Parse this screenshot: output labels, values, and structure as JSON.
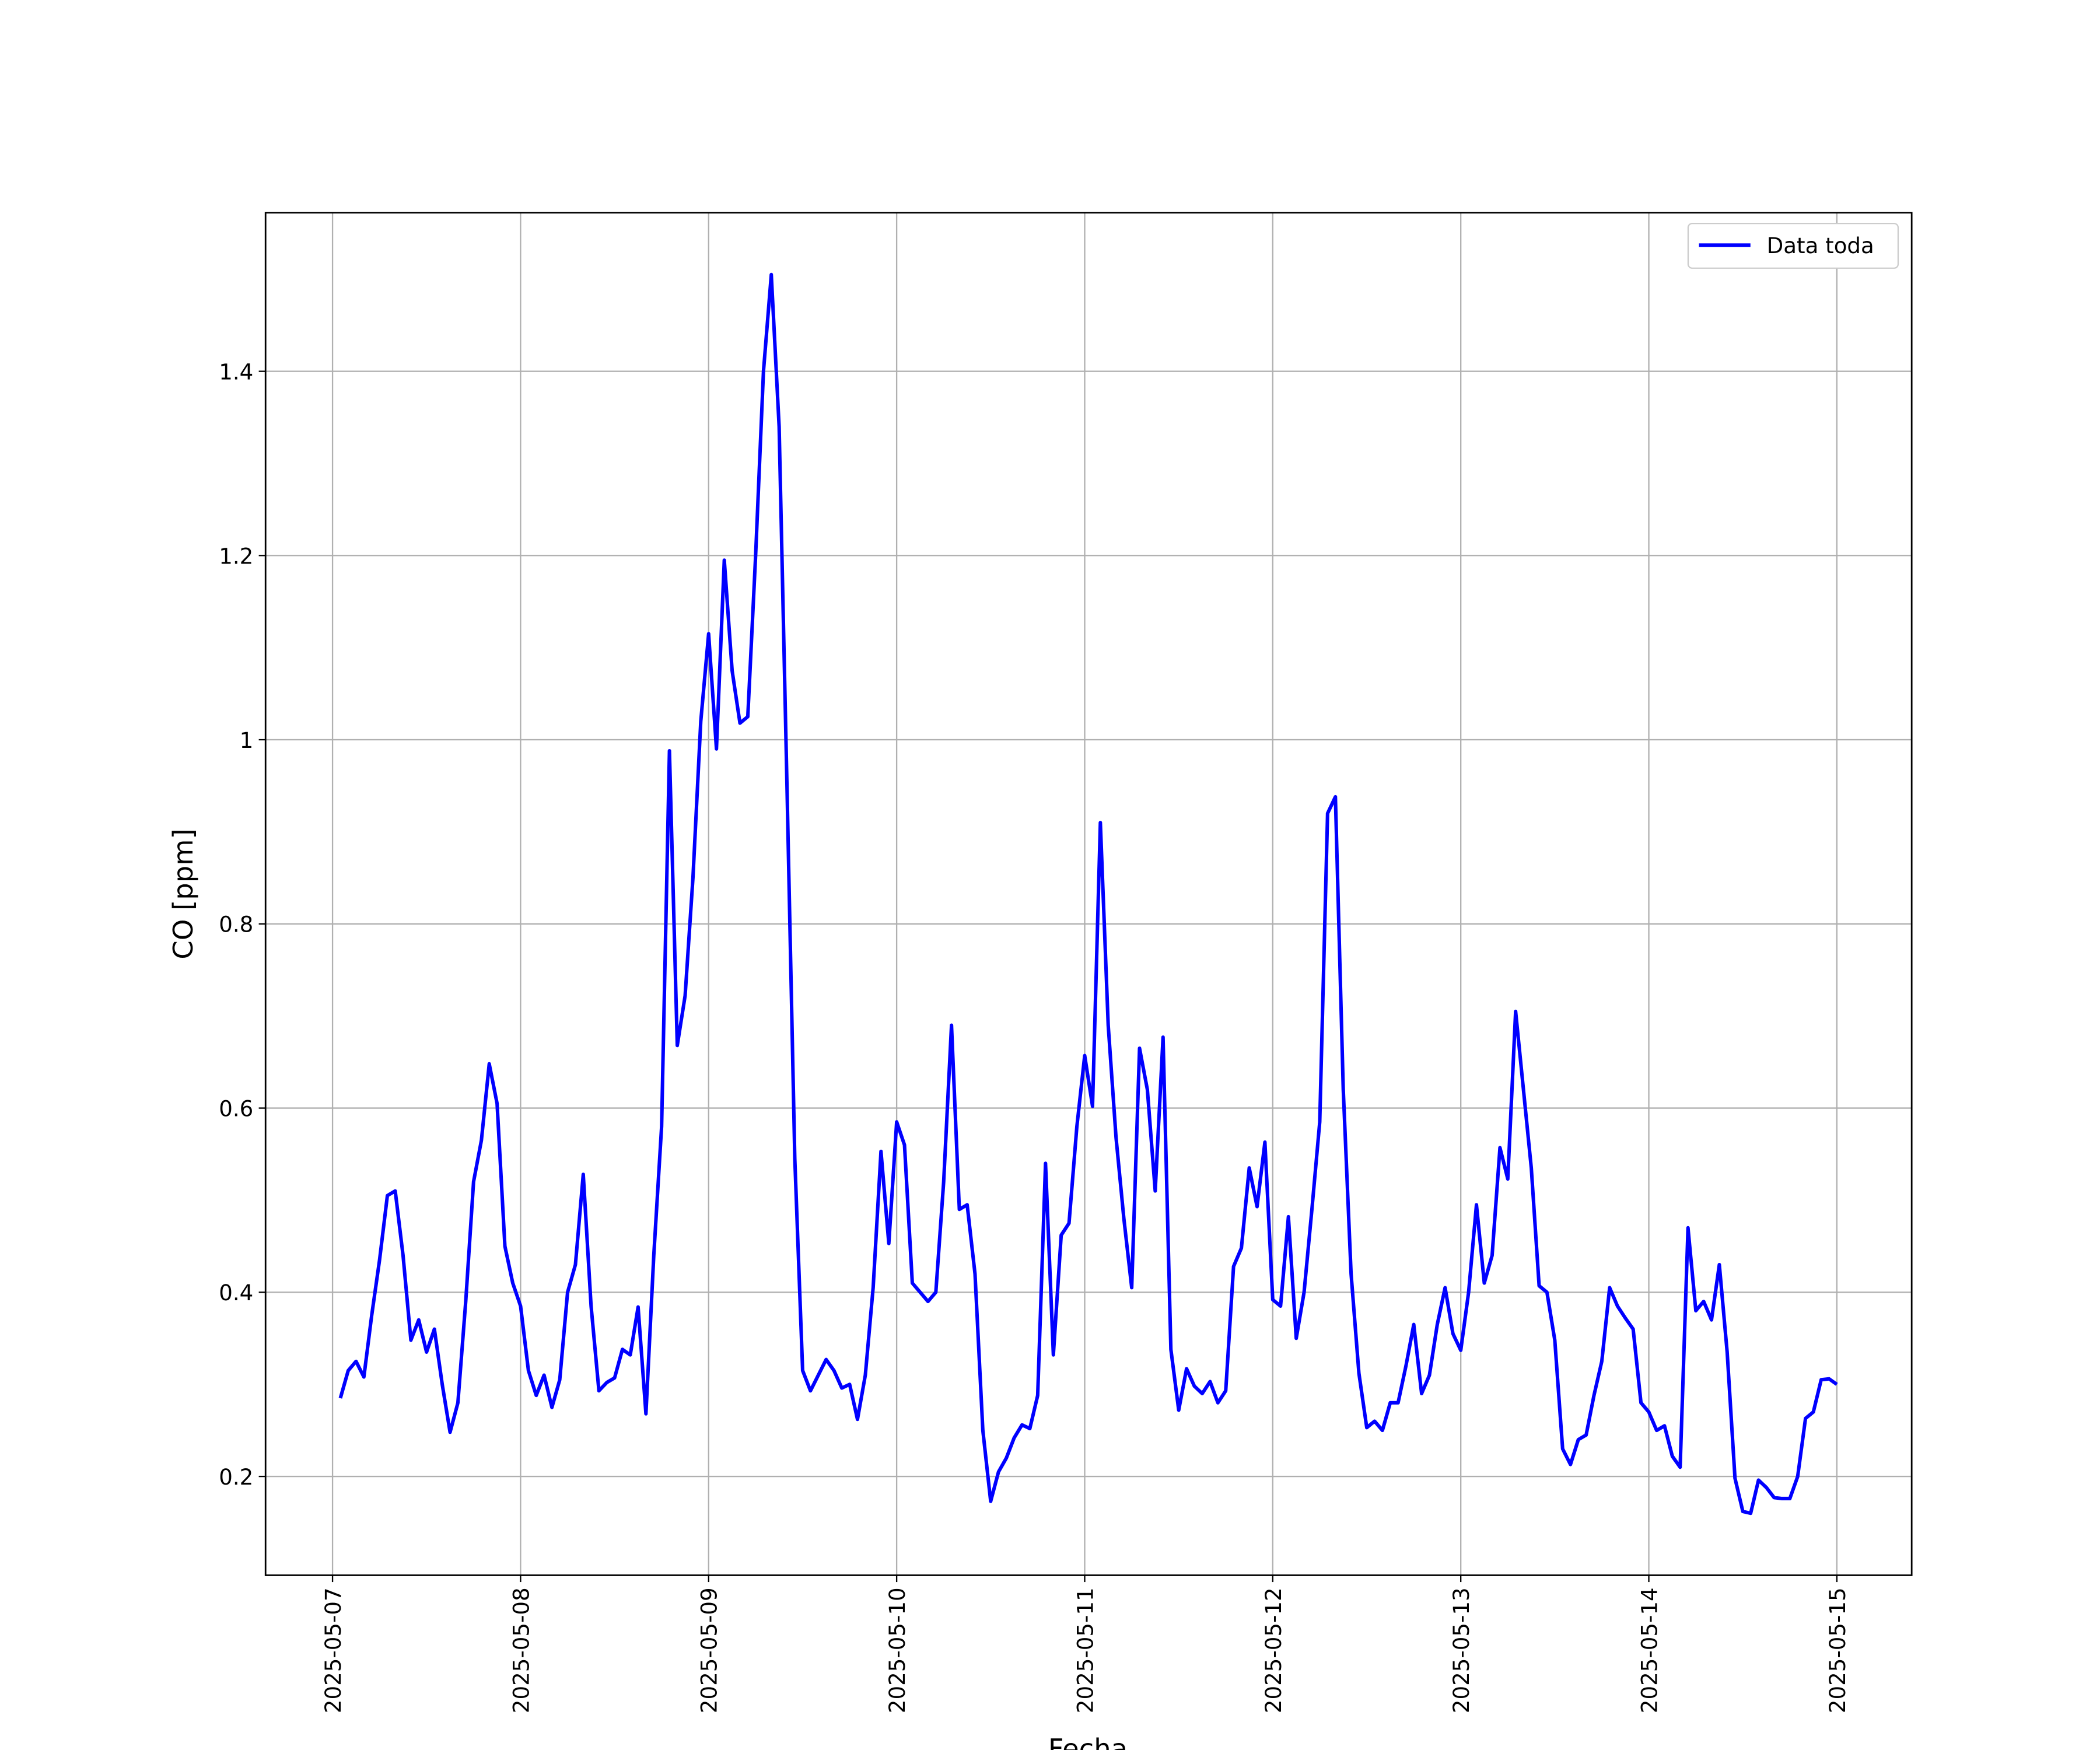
{
  "chart_data": {
    "type": "line",
    "x_label": "Fecha",
    "y_label": "CO [ppm]",
    "x": [
      "2025-05-07T01:00",
      "2025-05-07T02:00",
      "2025-05-07T03:00",
      "2025-05-07T04:00",
      "2025-05-07T05:00",
      "2025-05-07T06:00",
      "2025-05-07T07:00",
      "2025-05-07T08:00",
      "2025-05-07T09:00",
      "2025-05-07T10:00",
      "2025-05-07T11:00",
      "2025-05-07T12:00",
      "2025-05-07T13:00",
      "2025-05-07T14:00",
      "2025-05-07T15:00",
      "2025-05-07T16:00",
      "2025-05-07T17:00",
      "2025-05-07T18:00",
      "2025-05-07T19:00",
      "2025-05-07T20:00",
      "2025-05-07T21:00",
      "2025-05-07T22:00",
      "2025-05-07T23:00",
      "2025-05-08T00:00",
      "2025-05-08T01:00",
      "2025-05-08T02:00",
      "2025-05-08T03:00",
      "2025-05-08T04:00",
      "2025-05-08T05:00",
      "2025-05-08T06:00",
      "2025-05-08T07:00",
      "2025-05-08T08:00",
      "2025-05-08T09:00",
      "2025-05-08T10:00",
      "2025-05-08T11:00",
      "2025-05-08T12:00",
      "2025-05-08T13:00",
      "2025-05-08T14:00",
      "2025-05-08T15:00",
      "2025-05-08T16:00",
      "2025-05-08T17:00",
      "2025-05-08T18:00",
      "2025-05-08T19:00",
      "2025-05-08T20:00",
      "2025-05-08T21:00",
      "2025-05-08T22:00",
      "2025-05-08T23:00",
      "2025-05-09T00:00",
      "2025-05-09T01:00",
      "2025-05-09T02:00",
      "2025-05-09T03:00",
      "2025-05-09T04:00",
      "2025-05-09T05:00",
      "2025-05-09T06:00",
      "2025-05-09T07:00",
      "2025-05-09T08:00",
      "2025-05-09T09:00",
      "2025-05-09T10:00",
      "2025-05-09T11:00",
      "2025-05-09T12:00",
      "2025-05-09T13:00",
      "2025-05-09T14:00",
      "2025-05-09T15:00",
      "2025-05-09T16:00",
      "2025-05-09T17:00",
      "2025-05-09T18:00",
      "2025-05-09T19:00",
      "2025-05-09T20:00",
      "2025-05-09T21:00",
      "2025-05-09T22:00",
      "2025-05-09T23:00",
      "2025-05-10T00:00",
      "2025-05-10T01:00",
      "2025-05-10T02:00",
      "2025-05-10T03:00",
      "2025-05-10T04:00",
      "2025-05-10T05:00",
      "2025-05-10T06:00",
      "2025-05-10T07:00",
      "2025-05-10T08:00",
      "2025-05-10T09:00",
      "2025-05-10T10:00",
      "2025-05-10T11:00",
      "2025-05-10T12:00",
      "2025-05-10T13:00",
      "2025-05-10T14:00",
      "2025-05-10T15:00",
      "2025-05-10T16:00",
      "2025-05-10T17:00",
      "2025-05-10T18:00",
      "2025-05-10T19:00",
      "2025-05-10T20:00",
      "2025-05-10T21:00",
      "2025-05-10T22:00",
      "2025-05-10T23:00",
      "2025-05-11T00:00",
      "2025-05-11T01:00",
      "2025-05-11T02:00",
      "2025-05-11T03:00",
      "2025-05-11T04:00",
      "2025-05-11T05:00",
      "2025-05-11T06:00",
      "2025-05-11T07:00",
      "2025-05-11T08:00",
      "2025-05-11T09:00",
      "2025-05-11T10:00",
      "2025-05-11T11:00",
      "2025-05-11T12:00",
      "2025-05-11T13:00",
      "2025-05-11T14:00",
      "2025-05-11T15:00",
      "2025-05-11T16:00",
      "2025-05-11T17:00",
      "2025-05-11T18:00",
      "2025-05-11T19:00",
      "2025-05-11T20:00",
      "2025-05-11T21:00",
      "2025-05-11T22:00",
      "2025-05-11T23:00",
      "2025-05-12T00:00",
      "2025-05-12T01:00",
      "2025-05-12T02:00",
      "2025-05-12T03:00",
      "2025-05-12T04:00",
      "2025-05-12T05:00",
      "2025-05-12T06:00",
      "2025-05-12T07:00",
      "2025-05-12T08:00",
      "2025-05-12T09:00",
      "2025-05-12T10:00",
      "2025-05-12T11:00",
      "2025-05-12T12:00",
      "2025-05-12T13:00",
      "2025-05-12T14:00",
      "2025-05-12T15:00",
      "2025-05-12T16:00",
      "2025-05-12T17:00",
      "2025-05-12T18:00",
      "2025-05-12T19:00",
      "2025-05-12T20:00",
      "2025-05-12T21:00",
      "2025-05-12T22:00",
      "2025-05-12T23:00",
      "2025-05-13T00:00",
      "2025-05-13T01:00",
      "2025-05-13T02:00",
      "2025-05-13T03:00",
      "2025-05-13T04:00",
      "2025-05-13T05:00",
      "2025-05-13T06:00",
      "2025-05-13T07:00",
      "2025-05-13T08:00",
      "2025-05-13T09:00",
      "2025-05-13T10:00",
      "2025-05-13T11:00",
      "2025-05-13T12:00",
      "2025-05-13T13:00",
      "2025-05-13T14:00",
      "2025-05-13T15:00",
      "2025-05-13T16:00",
      "2025-05-13T17:00",
      "2025-05-13T18:00",
      "2025-05-13T19:00",
      "2025-05-13T20:00",
      "2025-05-13T21:00",
      "2025-05-13T22:00",
      "2025-05-13T23:00",
      "2025-05-14T00:00",
      "2025-05-14T01:00",
      "2025-05-14T02:00",
      "2025-05-14T03:00",
      "2025-05-14T04:00",
      "2025-05-14T05:00",
      "2025-05-14T06:00",
      "2025-05-14T07:00",
      "2025-05-14T08:00",
      "2025-05-14T09:00",
      "2025-05-14T10:00",
      "2025-05-14T11:00",
      "2025-05-14T12:00",
      "2025-05-14T13:00",
      "2025-05-14T14:00",
      "2025-05-14T15:00",
      "2025-05-14T16:00",
      "2025-05-14T17:00",
      "2025-05-14T18:00",
      "2025-05-14T19:00",
      "2025-05-14T20:00",
      "2025-05-14T21:00",
      "2025-05-14T22:00",
      "2025-05-14T23:00",
      "2025-05-15T00:00"
    ],
    "series": [
      {
        "name": "Data toda",
        "color": "#0000ff",
        "values": [
          0.285,
          0.315,
          0.325,
          0.308,
          0.375,
          0.435,
          0.505,
          0.51,
          0.44,
          0.348,
          0.37,
          0.335,
          0.36,
          0.3,
          0.248,
          0.28,
          0.39,
          0.52,
          0.565,
          0.648,
          0.605,
          0.45,
          0.41,
          0.385,
          0.315,
          0.288,
          0.31,
          0.275,
          0.305,
          0.4,
          0.43,
          0.528,
          0.385,
          0.293,
          0.302,
          0.307,
          0.338,
          0.332,
          0.384,
          0.268,
          0.44,
          0.58,
          0.988,
          0.668,
          0.722,
          0.85,
          1.02,
          1.115,
          0.99,
          1.195,
          1.075,
          1.018,
          1.025,
          1.2,
          1.4,
          1.505,
          1.34,
          0.95,
          0.545,
          0.315,
          0.293,
          0.31,
          0.327,
          0.315,
          0.296,
          0.3,
          0.262,
          0.31,
          0.405,
          0.553,
          0.453,
          0.585,
          0.56,
          0.41,
          0.4,
          0.39,
          0.4,
          0.52,
          0.69,
          0.49,
          0.495,
          0.42,
          0.25,
          0.173,
          0.205,
          0.22,
          0.242,
          0.256,
          0.252,
          0.288,
          0.54,
          0.332,
          0.462,
          0.475,
          0.58,
          0.657,
          0.602,
          0.91,
          0.69,
          0.568,
          0.48,
          0.405,
          0.665,
          0.62,
          0.51,
          0.677,
          0.338,
          0.272,
          0.317,
          0.298,
          0.29,
          0.303,
          0.28,
          0.293,
          0.428,
          0.448,
          0.535,
          0.493,
          0.563,
          0.392,
          0.385,
          0.482,
          0.35,
          0.4,
          0.49,
          0.585,
          0.92,
          0.938,
          0.62,
          0.42,
          0.312,
          0.253,
          0.26,
          0.25,
          0.28,
          0.28,
          0.32,
          0.365,
          0.29,
          0.31,
          0.365,
          0.405,
          0.355,
          0.337,
          0.4,
          0.495,
          0.41,
          0.44,
          0.557,
          0.523,
          0.705,
          0.62,
          0.535,
          0.407,
          0.4,
          0.348,
          0.23,
          0.213,
          0.24,
          0.245,
          0.288,
          0.325,
          0.405,
          0.385,
          0.372,
          0.36,
          0.28,
          0.27,
          0.25,
          0.255,
          0.222,
          0.21,
          0.47,
          0.38,
          0.39,
          0.37,
          0.43,
          0.335,
          0.198,
          0.162,
          0.16,
          0.196,
          0.188,
          0.177,
          0.176,
          0.176,
          0.2,
          0.263,
          0.27,
          0.305,
          0.306,
          0.3
        ]
      }
    ],
    "xlim": [
      "2025-05-06T15:27",
      "2025-05-15T09:33"
    ],
    "xticks": [
      "2025-05-07",
      "2025-05-08",
      "2025-05-09",
      "2025-05-10",
      "2025-05-11",
      "2025-05-12",
      "2025-05-13",
      "2025-05-14",
      "2025-05-15"
    ],
    "ylim": [
      0.0927,
      1.5723
    ],
    "yticks": [
      0.2,
      0.4,
      0.6,
      0.8,
      1.0,
      1.2,
      1.4
    ],
    "grid": true,
    "legend": "upper right"
  }
}
